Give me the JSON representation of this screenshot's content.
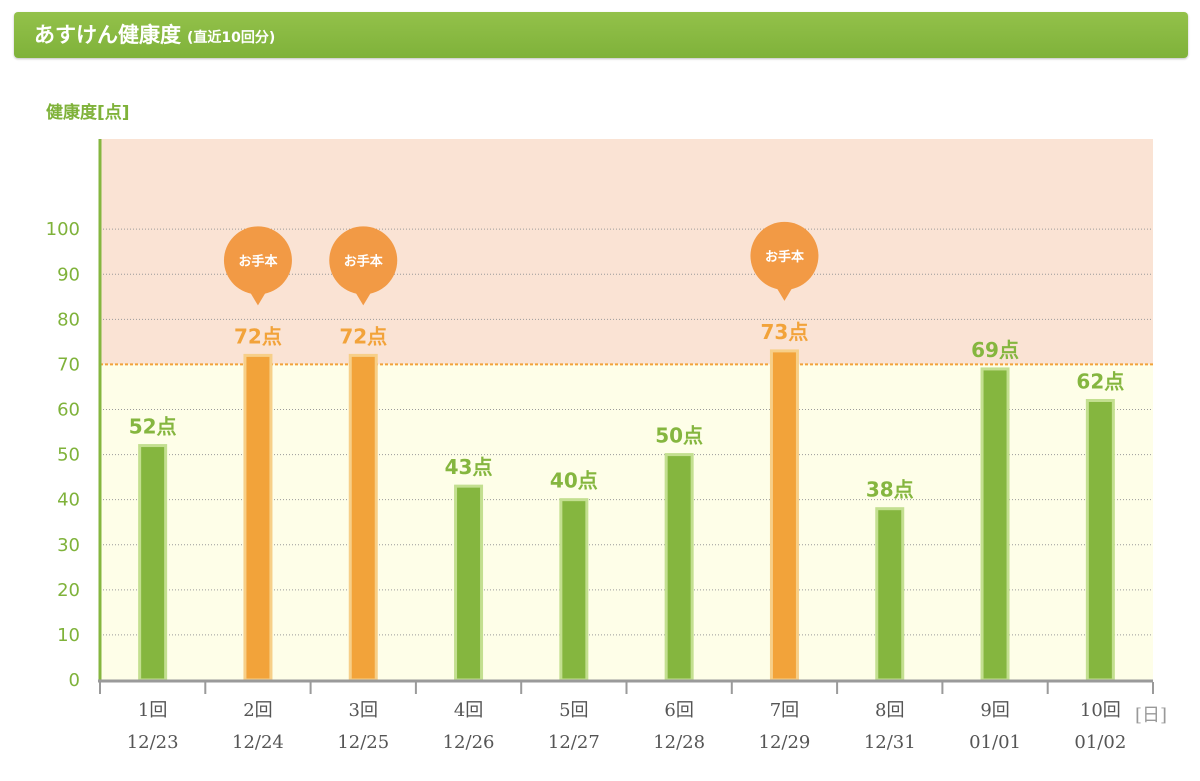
{
  "header": {
    "title": "あすけん健康度",
    "subtitle": "(直近10回分)"
  },
  "colors": {
    "header_green": "#85b63f",
    "bar_green": "#85b63f",
    "bar_orange": "#f2a33a",
    "badge_orange": "#f29a45",
    "zone_upper": "#fae3d4",
    "zone_lower": "#fefee8",
    "threshold_line": "#f2a33a"
  },
  "chart_data": {
    "type": "bar",
    "ylabel": "健康度[点]",
    "x_unit": "[日]",
    "ylim": [
      0,
      120
    ],
    "yticks": [
      0,
      10,
      20,
      30,
      40,
      50,
      60,
      70,
      80,
      90,
      100
    ],
    "threshold": 70,
    "value_suffix": "点",
    "badge_label": "お手本",
    "categories": [
      {
        "round": "1回",
        "date": "12/23"
      },
      {
        "round": "2回",
        "date": "12/24"
      },
      {
        "round": "3回",
        "date": "12/25"
      },
      {
        "round": "4回",
        "date": "12/26"
      },
      {
        "round": "5回",
        "date": "12/27"
      },
      {
        "round": "6回",
        "date": "12/28"
      },
      {
        "round": "7回",
        "date": "12/29"
      },
      {
        "round": "8回",
        "date": "12/31"
      },
      {
        "round": "9回",
        "date": "01/01"
      },
      {
        "round": "10回",
        "date": "01/02"
      }
    ],
    "values": [
      52,
      72,
      72,
      43,
      40,
      50,
      73,
      38,
      69,
      62
    ],
    "model_flags": [
      false,
      true,
      true,
      false,
      false,
      false,
      true,
      false,
      false,
      false
    ]
  }
}
